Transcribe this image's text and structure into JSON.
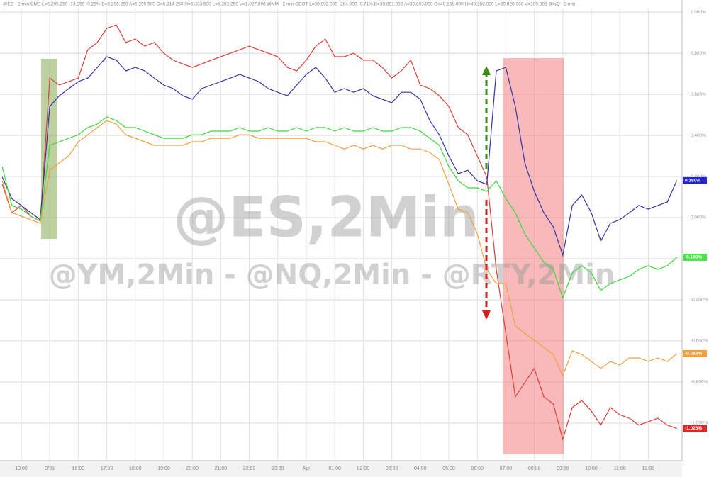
{
  "chart_data": {
    "type": "line",
    "subtitle": "@ES - 2 min  CME  L=5,295.250  -13.250  -0.25%  B=5,295.250  A=5,295.500  O=5,314.250  H=5,333.500  L=5,282.250  V=1,027,898  @YM - 2 min  CBOT  L=39,892.000  -284.000  -0.71%  B=39,891.000  A=39,893.000  O=40,158.000  H=40,288.000  L=39,820.000  V=109,882  @NQ - 2 min",
    "annotations": [
      "@ES,2Min",
      "@YM,2Min - @NQ,2Min - @RTY,2Min"
    ],
    "categories": [
      null,
      null,
      "13:00",
      null,
      null,
      "3/31",
      null,
      null,
      "16:00",
      null,
      null,
      "17:00",
      null,
      null,
      "18:00",
      null,
      null,
      "19:00",
      null,
      null,
      "20:00",
      null,
      null,
      "21:00",
      null,
      null,
      "22:00",
      null,
      null,
      "23:00",
      null,
      null,
      "Apr",
      null,
      null,
      "01:00",
      null,
      null,
      "02:00",
      null,
      null,
      "03:00",
      null,
      null,
      "04:00",
      null,
      null,
      "05:00",
      null,
      null,
      "06:00",
      null,
      null,
      "07:00",
      null,
      null,
      "08:00",
      null,
      null,
      "09:00",
      null,
      null,
      "10:00",
      null,
      null,
      "11:00",
      null,
      null,
      "12:00",
      null,
      null,
      null
    ],
    "ylim": [
      -1.183,
      1.059
    ],
    "yticks": [
      {
        "value": 1,
        "label": "1.000%"
      },
      {
        "value": 0.8,
        "label": "0.800%"
      },
      {
        "value": 0.6,
        "label": "0.600%"
      },
      {
        "value": 0.4,
        "label": "0.400%"
      },
      {
        "value": 0.2,
        "label": "0.200%"
      },
      {
        "value": 0,
        "label": "0.000%"
      },
      {
        "value": -0.2,
        "label": "-0.200%"
      },
      {
        "value": -0.4,
        "label": "-0.400%"
      },
      {
        "value": -0.6,
        "label": "-0.600%"
      },
      {
        "value": -0.8,
        "label": "-0.800%"
      },
      {
        "value": -1,
        "label": "-1.000%"
      }
    ],
    "grid": true,
    "series": [
      {
        "color": "#d6423a",
        "tag_color": "#e02525",
        "values": [
          0.162,
          0.024,
          0.059,
          0.007,
          -0.017,
          0.679,
          0.645,
          0.662,
          0.679,
          0.817,
          0.852,
          0.921,
          0.938,
          0.852,
          0.869,
          0.834,
          0.852,
          0.8,
          0.766,
          0.748,
          0.731,
          0.748,
          0.766,
          0.783,
          0.8,
          0.817,
          0.834,
          0.817,
          0.8,
          0.783,
          0.731,
          0.714,
          0.766,
          0.834,
          0.869,
          0.783,
          0.783,
          0.8,
          0.766,
          0.766,
          0.731,
          0.679,
          0.714,
          0.766,
          0.645,
          0.628,
          0.593,
          0.541,
          0.438,
          0.403,
          0.3,
          0.197,
          -0.252,
          -0.562,
          -0.872,
          -0.803,
          -0.734,
          -0.872,
          -0.907,
          -1.079,
          -0.924,
          -0.89,
          -0.941,
          -1.01,
          -0.924,
          -0.959,
          -0.976,
          -1.01,
          -0.993,
          -0.976,
          -1.01,
          -1.026
        ],
        "value_labels": [
          null,
          null,
          null,
          null,
          null,
          null,
          null,
          null,
          null,
          null,
          null,
          null,
          null,
          null,
          null,
          null,
          null,
          null,
          null,
          null,
          null,
          null,
          null,
          null,
          null,
          null,
          null,
          null,
          null,
          null,
          null,
          null,
          null,
          null,
          null,
          null,
          null,
          null,
          null,
          null,
          null,
          null,
          null,
          null,
          null,
          null,
          null,
          null,
          null,
          null,
          null,
          null,
          null,
          null,
          null,
          null,
          null,
          null,
          null,
          null,
          null,
          null,
          null,
          null,
          null,
          null,
          null,
          null,
          null,
          null,
          null,
          "-1.026%"
        ]
      },
      {
        "color": "#3434a6",
        "tag_color": "#2424d0",
        "values": [
          0.197,
          0.093,
          0.059,
          0.024,
          -0.01,
          0.541,
          0.593,
          0.628,
          0.662,
          0.679,
          0.731,
          0.783,
          0.766,
          0.714,
          0.731,
          0.714,
          0.679,
          0.645,
          0.628,
          0.593,
          0.576,
          0.628,
          0.645,
          0.662,
          0.679,
          0.697,
          0.679,
          0.662,
          0.628,
          0.61,
          0.593,
          0.645,
          0.697,
          0.731,
          0.679,
          0.61,
          0.628,
          0.61,
          0.628,
          0.593,
          0.576,
          0.559,
          0.61,
          0.61,
          0.576,
          0.472,
          0.403,
          0.3,
          0.214,
          0.231,
          0.179,
          0.162,
          0.714,
          0.731,
          0.541,
          0.266,
          0.128,
          0.024,
          -0.045,
          -0.183,
          0.059,
          0.11,
          0.024,
          -0.114,
          -0.028,
          -0.01,
          0.024,
          0.059,
          0.041,
          0.059,
          0.076,
          0.18
        ],
        "value_labels": [
          null,
          null,
          null,
          null,
          null,
          null,
          null,
          null,
          null,
          null,
          null,
          null,
          null,
          null,
          null,
          null,
          null,
          null,
          null,
          null,
          null,
          null,
          null,
          null,
          null,
          null,
          null,
          null,
          null,
          null,
          null,
          null,
          null,
          null,
          null,
          null,
          null,
          null,
          null,
          null,
          null,
          null,
          null,
          null,
          null,
          null,
          null,
          null,
          null,
          null,
          null,
          null,
          null,
          null,
          null,
          null,
          null,
          null,
          null,
          null,
          null,
          null,
          null,
          null,
          null,
          null,
          null,
          null,
          null,
          null,
          null,
          "0.180%"
        ]
      },
      {
        "color": "#3ed83e",
        "tag_color": "#4fe04f",
        "values": [
          0.248,
          0.059,
          0.041,
          0.007,
          -0.017,
          0.352,
          0.369,
          0.386,
          0.403,
          0.438,
          0.455,
          0.49,
          0.472,
          0.438,
          0.438,
          0.421,
          0.403,
          0.386,
          0.386,
          0.386,
          0.403,
          0.403,
          0.421,
          0.421,
          0.421,
          0.438,
          0.421,
          0.421,
          0.438,
          0.421,
          0.421,
          0.438,
          0.421,
          0.438,
          0.438,
          0.421,
          0.438,
          0.421,
          0.421,
          0.438,
          0.421,
          0.421,
          0.438,
          0.438,
          0.421,
          0.386,
          0.352,
          0.248,
          0.179,
          0.145,
          0.145,
          0.128,
          0.179,
          0.093,
          0.024,
          -0.079,
          -0.148,
          -0.217,
          -0.252,
          -0.39,
          -0.269,
          -0.234,
          -0.269,
          -0.355,
          -0.321,
          -0.303,
          -0.286,
          -0.252,
          -0.234,
          -0.252,
          -0.234,
          -0.193
        ],
        "value_labels": [
          null,
          null,
          null,
          null,
          null,
          null,
          null,
          null,
          null,
          null,
          null,
          null,
          null,
          null,
          null,
          null,
          null,
          null,
          null,
          null,
          null,
          null,
          null,
          null,
          null,
          null,
          null,
          null,
          null,
          null,
          null,
          null,
          null,
          null,
          null,
          null,
          null,
          null,
          null,
          null,
          null,
          null,
          null,
          null,
          null,
          null,
          null,
          null,
          null,
          null,
          null,
          null,
          null,
          null,
          null,
          null,
          null,
          null,
          null,
          null,
          null,
          null,
          null,
          null,
          null,
          null,
          null,
          null,
          null,
          null,
          null,
          "-0.193%"
        ]
      },
      {
        "color": "#f0a040",
        "tag_color": "#f0a040",
        "values": [
          0.179,
          0.024,
          0.007,
          -0.01,
          -0.028,
          0.231,
          0.266,
          0.3,
          0.369,
          0.403,
          0.438,
          0.472,
          0.455,
          0.403,
          0.386,
          0.369,
          0.352,
          0.352,
          0.352,
          0.352,
          0.369,
          0.369,
          0.386,
          0.386,
          0.386,
          0.403,
          0.403,
          0.386,
          0.386,
          0.386,
          0.386,
          0.386,
          0.386,
          0.369,
          0.369,
          0.352,
          0.334,
          0.352,
          0.334,
          0.352,
          0.334,
          0.352,
          0.352,
          0.334,
          0.334,
          0.317,
          0.283,
          0.162,
          0.041,
          0.024,
          -0.079,
          -0.252,
          -0.321,
          -0.321,
          -0.528,
          -0.562,
          -0.597,
          -0.631,
          -0.666,
          -0.769,
          -0.648,
          -0.666,
          -0.7,
          -0.734,
          -0.7,
          -0.717,
          -0.683,
          -0.683,
          -0.7,
          -0.683,
          -0.7,
          -0.662
        ],
        "value_labels": [
          null,
          null,
          null,
          null,
          null,
          null,
          null,
          null,
          null,
          null,
          null,
          null,
          null,
          null,
          null,
          null,
          null,
          null,
          null,
          null,
          null,
          null,
          null,
          null,
          null,
          null,
          null,
          null,
          null,
          null,
          null,
          null,
          null,
          null,
          null,
          null,
          null,
          null,
          null,
          null,
          null,
          null,
          null,
          null,
          null,
          null,
          null,
          null,
          null,
          null,
          null,
          null,
          null,
          null,
          null,
          null,
          null,
          null,
          null,
          null,
          null,
          null,
          null,
          null,
          null,
          null,
          null,
          null,
          null,
          null,
          null,
          "-0.662%"
        ]
      }
    ]
  }
}
